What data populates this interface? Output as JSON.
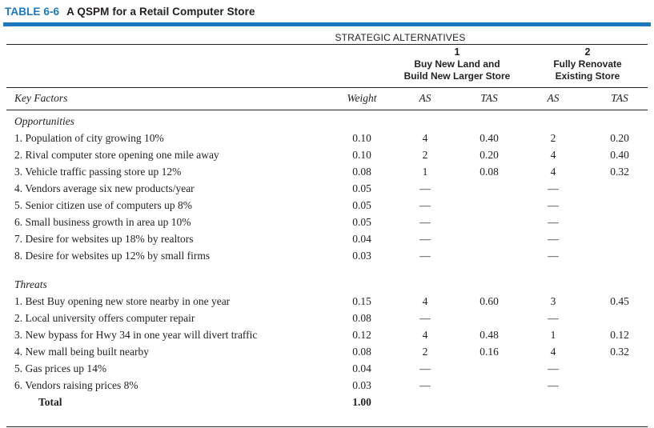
{
  "colors": {
    "accent_blue": "#1b78bd",
    "text": "#231f20"
  },
  "caption": {
    "tag": "TABLE 6-6",
    "title": "A QSPM for a Retail Computer Store"
  },
  "header": {
    "group_title": "STRATEGIC ALTERNATIVES",
    "alternatives": [
      {
        "number": "1",
        "name_line1": "Buy New Land and",
        "name_line2": "Build New Larger Store"
      },
      {
        "number": "2",
        "name_line1": "Fully Renovate",
        "name_line2": "Existing Store"
      }
    ],
    "columns": {
      "factor": "Key Factors",
      "weight": "Weight",
      "as1": "AS",
      "tas1": "TAS",
      "as2": "AS",
      "tas2": "TAS"
    }
  },
  "table": {
    "sections": [
      {
        "name": "Opportunities",
        "rows": [
          {
            "factor": "1. Population of city growing 10%",
            "weight": "0.10",
            "as1": "4",
            "tas1": "0.40",
            "as2": "2",
            "tas2": "0.20"
          },
          {
            "factor": "2. Rival computer store opening one mile away",
            "weight": "0.10",
            "as1": "2",
            "tas1": "0.20",
            "as2": "4",
            "tas2": "0.40"
          },
          {
            "factor": "3. Vehicle traffic passing store up 12%",
            "weight": "0.08",
            "as1": "1",
            "tas1": "0.08",
            "as2": "4",
            "tas2": "0.32"
          },
          {
            "factor": "4. Vendors average six new products/year",
            "weight": "0.05",
            "as1": "—",
            "tas1": "",
            "as2": "—",
            "tas2": ""
          },
          {
            "factor": "5. Senior citizen use of computers up 8%",
            "weight": "0.05",
            "as1": "—",
            "tas1": "",
            "as2": "—",
            "tas2": ""
          },
          {
            "factor": "6. Small business growth in area up 10%",
            "weight": "0.05",
            "as1": "—",
            "tas1": "",
            "as2": "—",
            "tas2": ""
          },
          {
            "factor": "7. Desire for websites up 18% by realtors",
            "weight": "0.04",
            "as1": "—",
            "tas1": "",
            "as2": "—",
            "tas2": ""
          },
          {
            "factor": "8. Desire for websites up 12% by small firms",
            "weight": "0.03",
            "as1": "—",
            "tas1": "",
            "as2": "—",
            "tas2": ""
          }
        ]
      },
      {
        "name": "Threats",
        "rows": [
          {
            "factor": "1. Best Buy opening new store nearby in one year",
            "weight": "0.15",
            "as1": "4",
            "tas1": "0.60",
            "as2": "3",
            "tas2": "0.45"
          },
          {
            "factor": "2. Local university offers computer repair",
            "weight": "0.08",
            "as1": "—",
            "tas1": "",
            "as2": "—",
            "tas2": ""
          },
          {
            "factor": "3. New bypass for Hwy 34 in one year will divert traffic",
            "weight": "0.12",
            "as1": "4",
            "tas1": "0.48",
            "as2": "1",
            "tas2": "0.12"
          },
          {
            "factor": "4. New mall being built nearby",
            "weight": "0.08",
            "as1": "2",
            "tas1": "0.16",
            "as2": "4",
            "tas2": "0.32"
          },
          {
            "factor": "5. Gas prices up 14%",
            "weight": "0.04",
            "as1": "—",
            "tas1": "",
            "as2": "—",
            "tas2": ""
          },
          {
            "factor": "6. Vendors raising prices 8%",
            "weight": "0.03",
            "as1": "—",
            "tas1": "",
            "as2": "—",
            "tas2": ""
          }
        ]
      }
    ],
    "total": {
      "label": "Total",
      "weight": "1.00"
    }
  }
}
